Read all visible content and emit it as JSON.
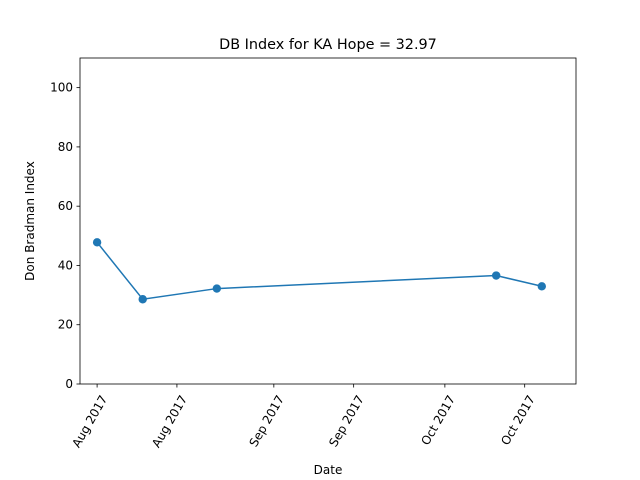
{
  "chart_data": {
    "type": "line",
    "title": "DB Index for KA Hope = 32.97",
    "xlabel": "Date",
    "ylabel": "Don Bradman Index",
    "ylim": [
      0,
      110
    ],
    "yticks": [
      0,
      20,
      40,
      60,
      80,
      100
    ],
    "xlim": [
      "2017-07-29",
      "2017-10-24"
    ],
    "xticks": [
      {
        "date": "2017-08-01",
        "label": "Aug 2017"
      },
      {
        "date": "2017-08-15",
        "label": "Aug 2017"
      },
      {
        "date": "2017-09-01",
        "label": "Sep 2017"
      },
      {
        "date": "2017-09-15",
        "label": "Sep 2017"
      },
      {
        "date": "2017-10-01",
        "label": "Oct 2017"
      },
      {
        "date": "2017-10-15",
        "label": "Oct 2017"
      }
    ],
    "series": [
      {
        "color": "#1f77b4",
        "points": [
          {
            "date": "2017-08-01",
            "value": 47.8
          },
          {
            "date": "2017-08-09",
            "value": 28.6
          },
          {
            "date": "2017-08-22",
            "value": 32.2
          },
          {
            "date": "2017-10-10",
            "value": 36.6
          },
          {
            "date": "2017-10-18",
            "value": 32.97
          }
        ]
      }
    ],
    "grid": false
  }
}
